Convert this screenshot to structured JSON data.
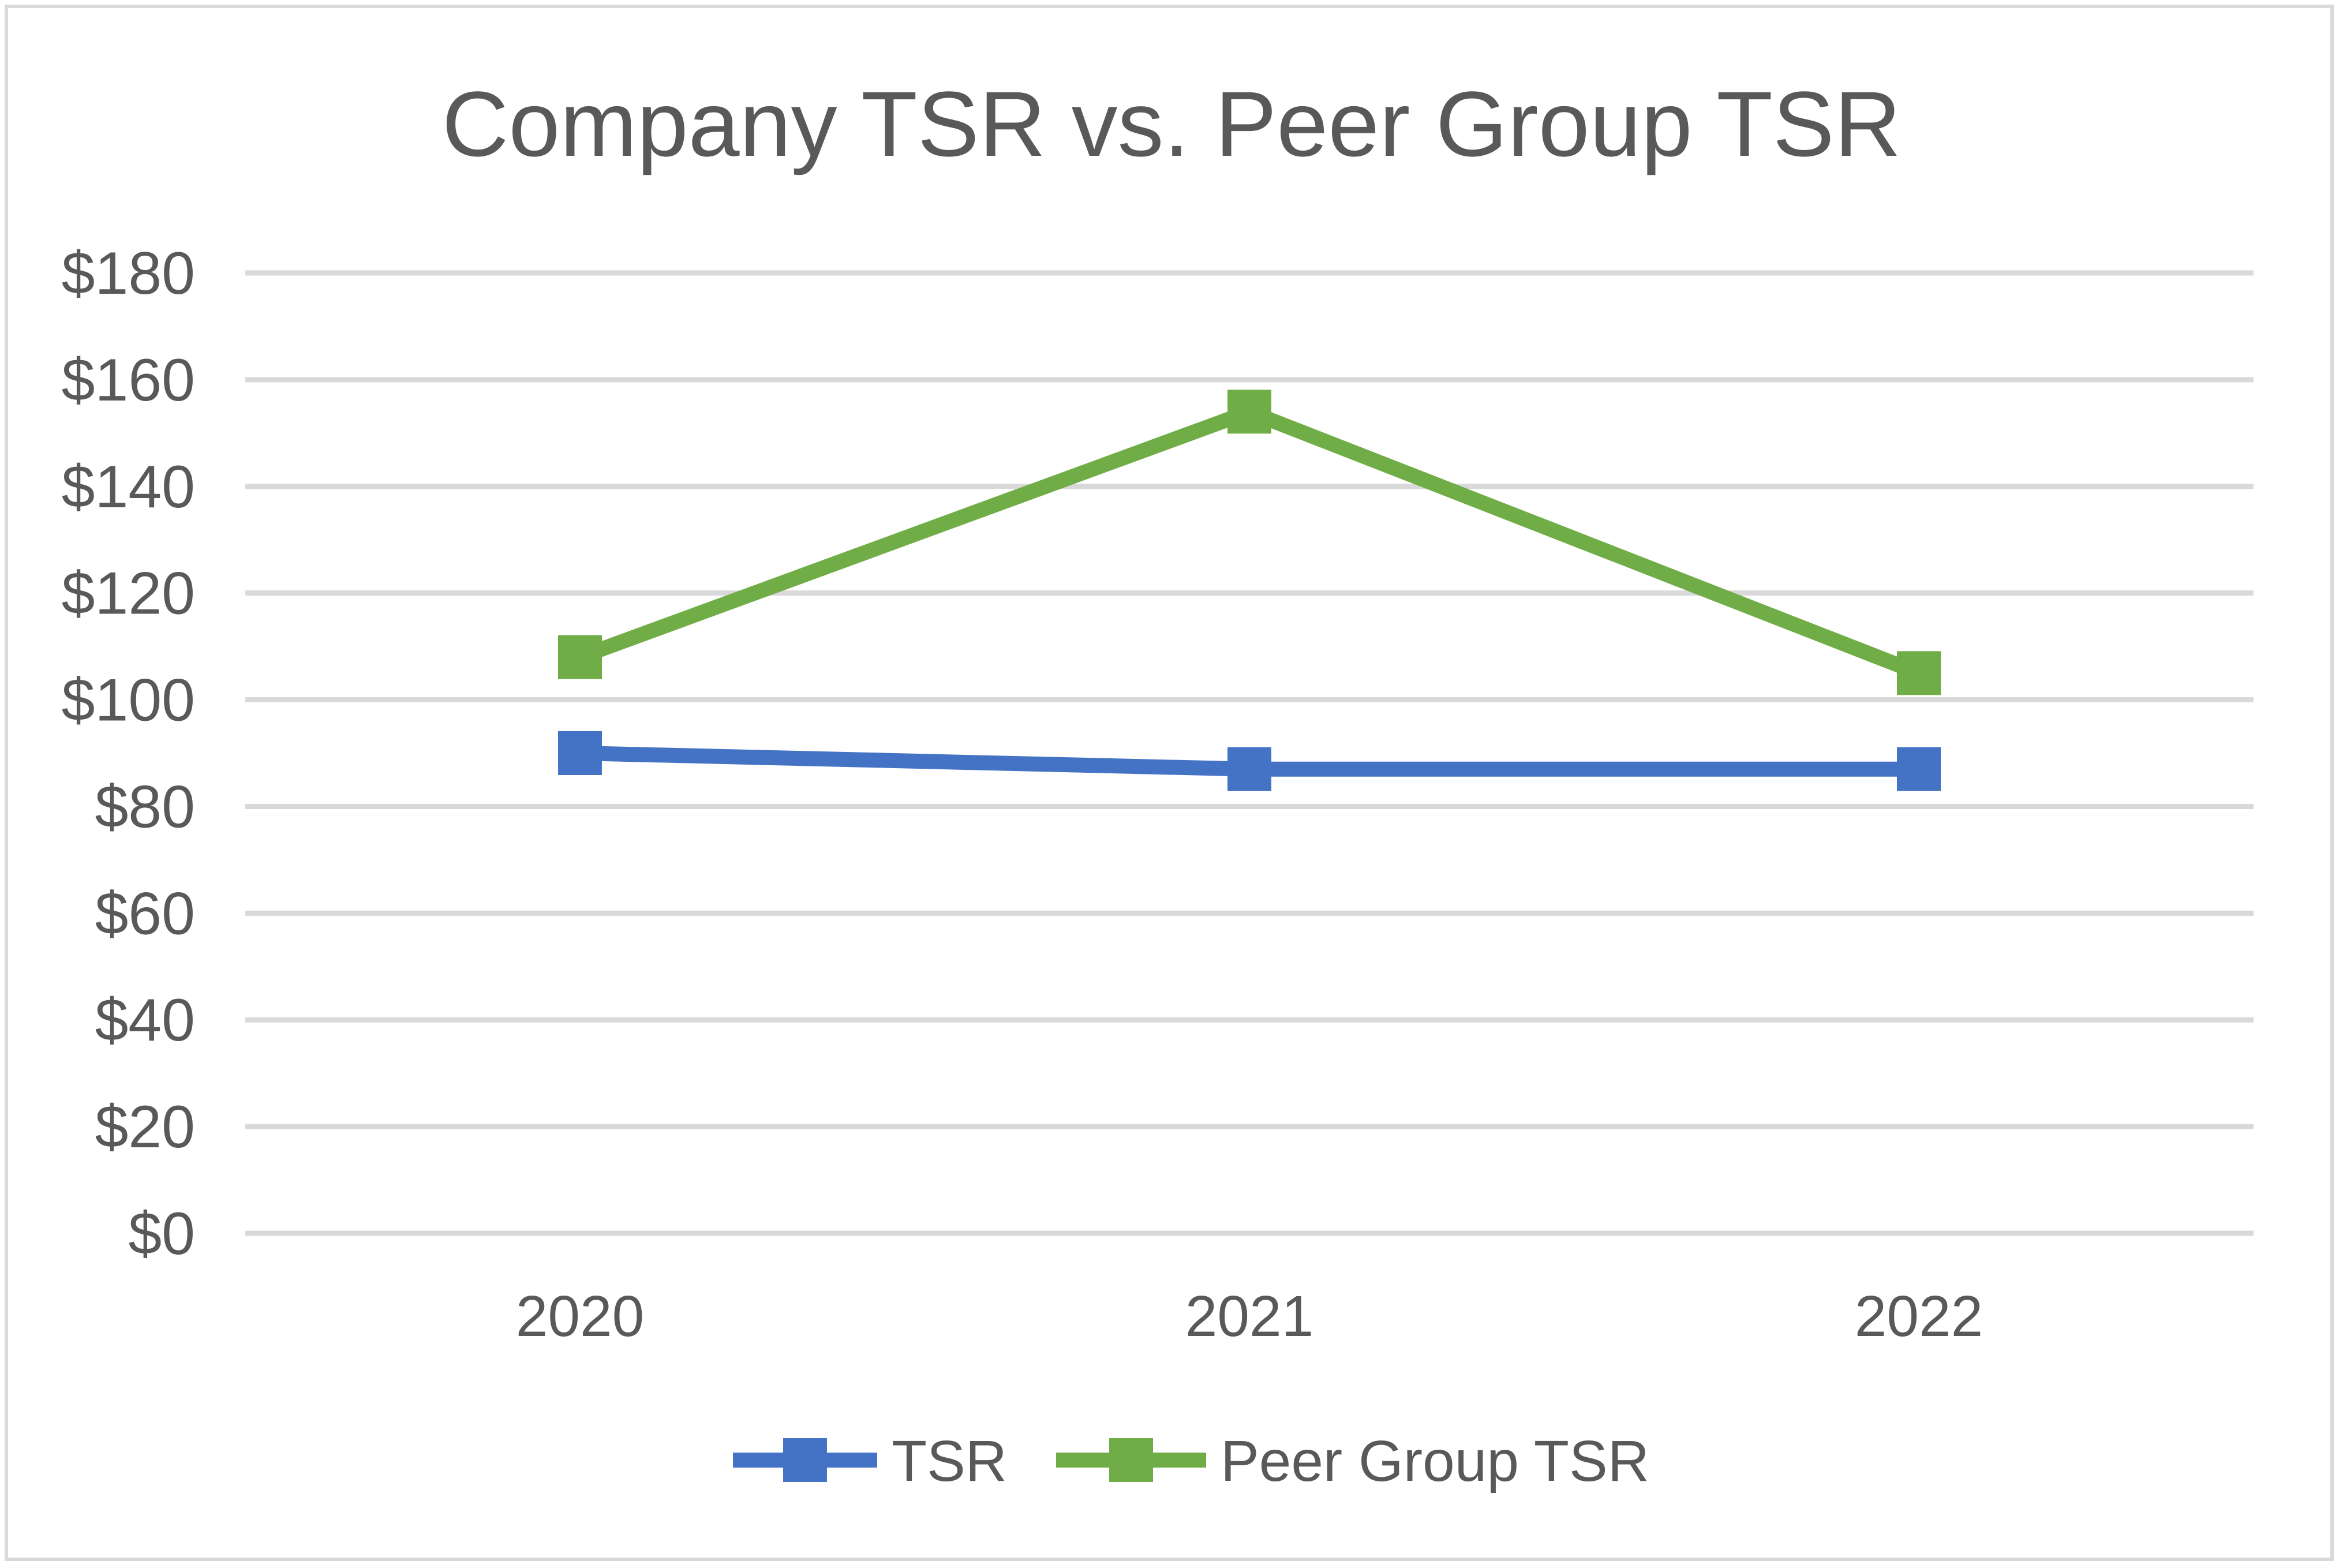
{
  "chart_data": {
    "type": "line",
    "title": "Company TSR vs. Peer Group TSR",
    "xlabel": "",
    "ylabel": "",
    "categories": [
      "2020",
      "2021",
      "2022"
    ],
    "ylim": [
      0,
      180
    ],
    "ytick_values": [
      0,
      20,
      40,
      60,
      80,
      100,
      120,
      140,
      160,
      180
    ],
    "ytick_labels": [
      "$0",
      "$20",
      "$40",
      "$60",
      "$80",
      "$100",
      "$120",
      "$140",
      "$160",
      "$180"
    ],
    "grid": true,
    "legend_position": "bottom",
    "series": [
      {
        "name": "TSR",
        "color": "#4472C4",
        "values": [
          90,
          87,
          87
        ]
      },
      {
        "name": "Peer Group TSR",
        "color": "#70AD47",
        "values": [
          108,
          154,
          105
        ]
      }
    ]
  }
}
